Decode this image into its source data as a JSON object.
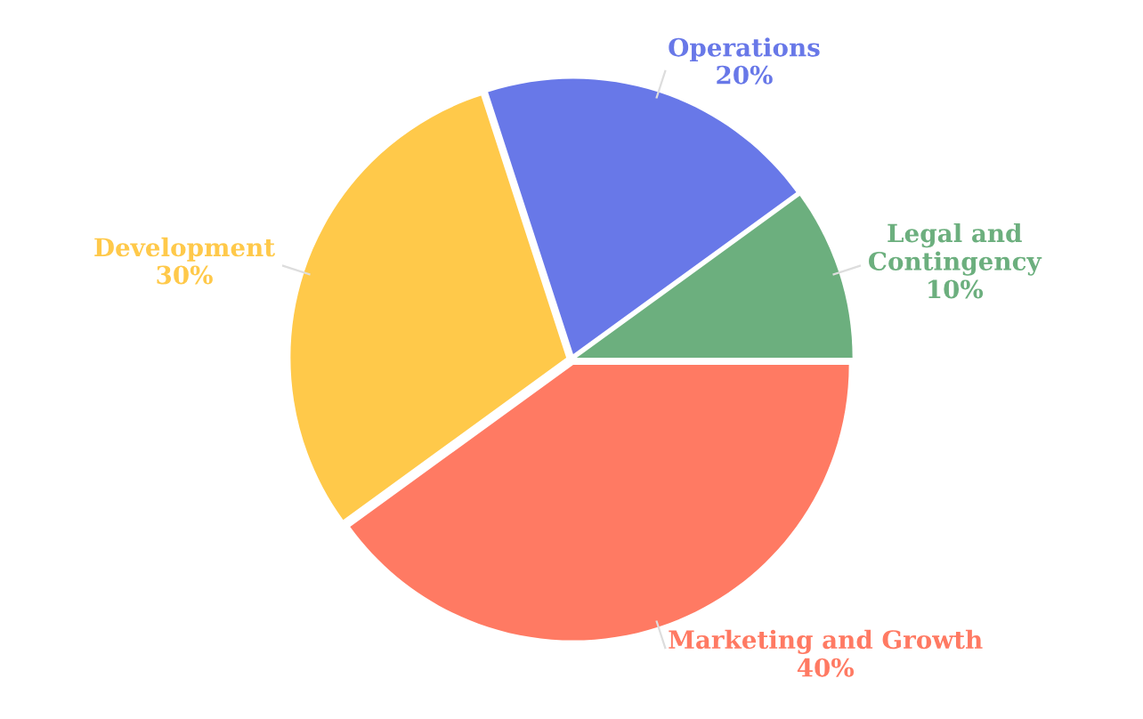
{
  "chart_data": {
    "type": "pie",
    "categories": [
      "Legal and\nContingency",
      "Operations",
      "Development",
      "Marketing and Growth"
    ],
    "values": [
      10,
      20,
      30,
      40
    ],
    "value_labels": [
      "10%",
      "20%",
      "30%",
      "40%"
    ],
    "colors": [
      "#6caf7e",
      "#6878e8",
      "#ffc94a",
      "#ff7a63"
    ],
    "legend": false
  }
}
